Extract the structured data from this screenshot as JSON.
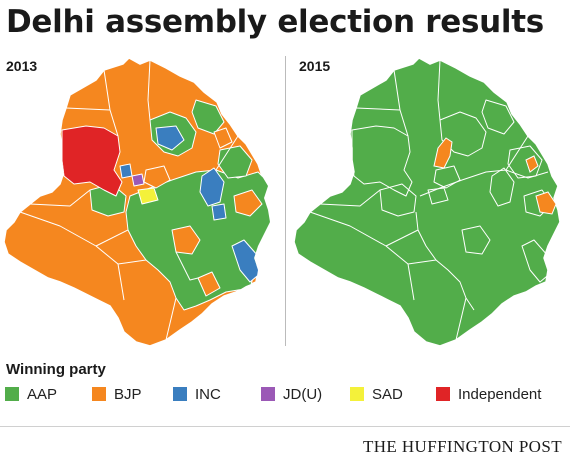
{
  "title": "Delhi assembly election results",
  "maps": [
    {
      "year": "2013"
    },
    {
      "year": "2015"
    }
  ],
  "legend": {
    "title": "Winning party",
    "items": [
      {
        "label": "AAP",
        "color": "#52ad4a"
      },
      {
        "label": "BJP",
        "color": "#f5871f"
      },
      {
        "label": "INC",
        "color": "#3a7ebf"
      },
      {
        "label": "JD(U)",
        "color": "#9b59b6"
      },
      {
        "label": "SAD",
        "color": "#f4f13a"
      },
      {
        "label": "Independent",
        "color": "#e02426"
      }
    ]
  },
  "source": "THE HUFFINGTON POST"
}
